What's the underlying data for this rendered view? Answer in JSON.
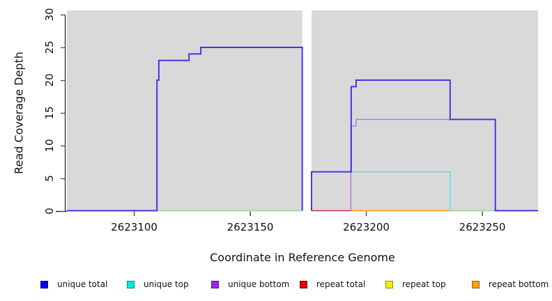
{
  "chart": {
    "title": "",
    "ylabel": "Read Coverage Depth",
    "xlabel": "Coordinate in Reference Genome",
    "panel_bg": "#d9d9d9",
    "axis_color": "#000000",
    "tick_color": "#444444"
  },
  "chart_data": {
    "type": "line",
    "subtype": "step-coverage",
    "title": "",
    "xlabel": "Coordinate in Reference Genome",
    "ylabel": "Read Coverage Depth",
    "xlim": [
      2623071,
      2623274
    ],
    "ylim": [
      0,
      30
    ],
    "x_ticks": [
      2623100,
      2623150,
      2623200,
      2623250
    ],
    "y_ticks": [
      0,
      5,
      10,
      15,
      20,
      25,
      30
    ],
    "grid": false,
    "coverage_gap_x": [
      2623172.4,
      2623176.4
    ],
    "legend_position": "bottom",
    "series": [
      {
        "name": "zero-overlap-green-left",
        "color": "#9cd49c",
        "width": 1.6,
        "points": [
          [
            2623109.8,
            0
          ],
          [
            2623172.4,
            0
          ]
        ]
      },
      {
        "name": "zero-overlap-green-right",
        "color": "#9cd49c",
        "width": 1.6,
        "points": [
          [
            2623236.1,
            0
          ],
          [
            2623255.6,
            0
          ]
        ]
      },
      {
        "name": "repeat total",
        "color": "#cc3a5c",
        "width": 1.6,
        "points": [
          [
            2623176.4,
            0
          ],
          [
            2623193.5,
            0
          ]
        ]
      },
      {
        "name": "repeat bottom",
        "color": "#ff9d1e",
        "width": 1.8,
        "points": [
          [
            2623193.5,
            0
          ],
          [
            2623236.1,
            0
          ]
        ]
      },
      {
        "name": "unique bottom",
        "color": "#b47bde",
        "width": 1.5,
        "points": [
          [
            2623193.3,
            0
          ],
          [
            2623193.3,
            13
          ],
          [
            2623195.6,
            13
          ],
          [
            2623195.6,
            14
          ],
          [
            2623255.6,
            14
          ],
          [
            2623255.6,
            0
          ]
        ]
      },
      {
        "name": "unique top",
        "color": "#5cdede",
        "width": 1.5,
        "points": [
          [
            2623193.5,
            6
          ],
          [
            2623236.1,
            6
          ],
          [
            2623236.1,
            0
          ]
        ]
      },
      {
        "name": "unique total (left block)",
        "color": "#4338e0",
        "width": 2,
        "points": [
          [
            2623071,
            0
          ],
          [
            2623109.8,
            0
          ],
          [
            2623109.8,
            20
          ],
          [
            2623110.6,
            20
          ],
          [
            2623110.6,
            23
          ],
          [
            2623123.6,
            23
          ],
          [
            2623123.6,
            24
          ],
          [
            2623128.7,
            24
          ],
          [
            2623128.7,
            25
          ],
          [
            2623172.4,
            25
          ],
          [
            2623172.4,
            0
          ]
        ]
      },
      {
        "name": "unique total (right block)",
        "color": "#4338e0",
        "width": 2,
        "points": [
          [
            2623176.4,
            0
          ],
          [
            2623176.4,
            6
          ],
          [
            2623193.5,
            6
          ],
          [
            2623193.5,
            19
          ],
          [
            2623195.6,
            19
          ],
          [
            2623195.6,
            20
          ],
          [
            2623236.1,
            20
          ],
          [
            2623236.1,
            14
          ],
          [
            2623255.6,
            14
          ],
          [
            2623255.6,
            0
          ],
          [
            2623274,
            0
          ]
        ]
      }
    ]
  },
  "legend": {
    "items": [
      {
        "label": "unique total",
        "color": "#0000ee",
        "border": "#000088"
      },
      {
        "label": "unique top",
        "color": "#00e5e5",
        "border": "#008b8b"
      },
      {
        "label": "unique bottom",
        "color": "#a020f0",
        "border": "#5e0f91"
      },
      {
        "label": "repeat total",
        "color": "#e60000",
        "border": "#7a0000"
      },
      {
        "label": "repeat top",
        "color": "#f0f000",
        "border": "#8f8f00"
      },
      {
        "label": "repeat bottom",
        "color": "#ffa010",
        "border": "#9c5f00"
      }
    ]
  }
}
